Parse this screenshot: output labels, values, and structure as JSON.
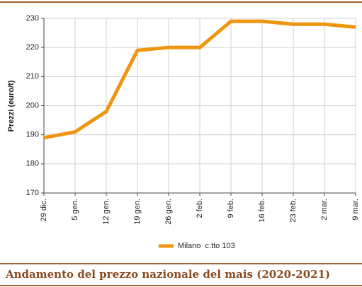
{
  "chart_data": {
    "type": "line",
    "title": "Andamento del prezzo nazionale del mais (2020-2021)",
    "y_label": "Prezzi (euro/t)",
    "categories": [
      "29 dic.",
      "5 gen.",
      "12 gen.",
      "19 gen.",
      "26 gen.",
      "2 feb.",
      "9 feb.",
      "16 feb.",
      "23 feb.",
      "2 mar.",
      "9 mar."
    ],
    "series": [
      {
        "name": "Milano  c.tto 103",
        "color": "#f0950f",
        "values": [
          189,
          191,
          198,
          219,
          220,
          220,
          229,
          229,
          228,
          228,
          227
        ]
      }
    ],
    "ylim": [
      170,
      230
    ],
    "yticks": [
      170,
      180,
      190,
      200,
      210,
      220,
      230
    ],
    "grid": true
  }
}
